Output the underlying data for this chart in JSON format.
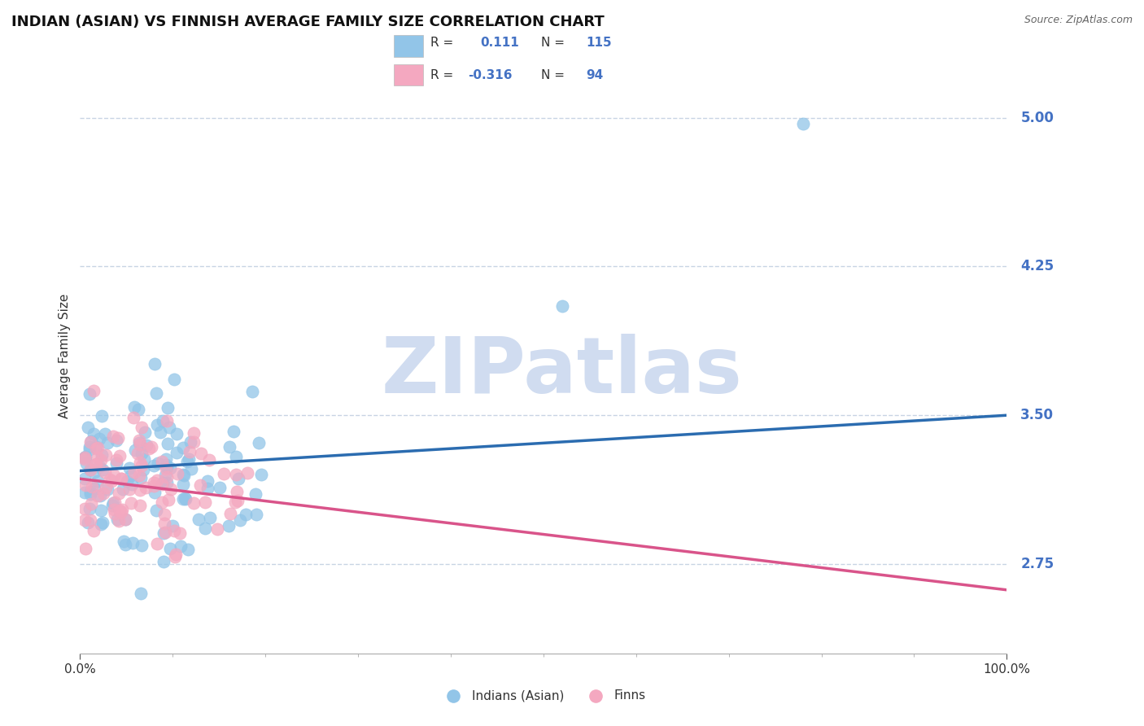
{
  "title": "INDIAN (ASIAN) VS FINNISH AVERAGE FAMILY SIZE CORRELATION CHART",
  "source_text": "Source: ZipAtlas.com",
  "ylabel": "Average Family Size",
  "xlim": [
    0.0,
    100.0
  ],
  "ylim": [
    2.3,
    5.3
  ],
  "yticks": [
    2.75,
    3.5,
    4.25,
    5.0
  ],
  "xticklabels": [
    "0.0%",
    "100.0%"
  ],
  "blue_color": "#92C5E8",
  "pink_color": "#F4A8C0",
  "trend_blue": "#2B6CB0",
  "trend_pink": "#D9548A",
  "grid_color": "#C8D4E4",
  "label_color": "#4472C4",
  "watermark_color": "#D0DCF0",
  "title_fontsize": 13,
  "axis_label_fontsize": 11,
  "tick_fontsize": 11,
  "background_color": "#FFFFFF",
  "blue_trend_x": [
    0,
    100
  ],
  "blue_trend_y": [
    3.22,
    3.5
  ],
  "pink_trend_x": [
    0,
    100
  ],
  "pink_trend_y": [
    3.18,
    2.62
  ]
}
